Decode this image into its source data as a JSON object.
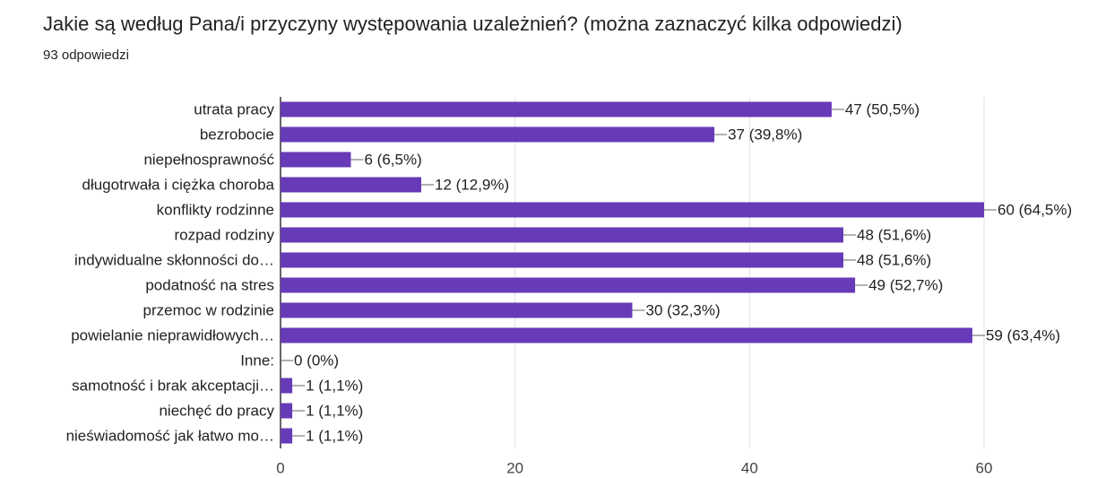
{
  "chart_data": {
    "type": "bar",
    "orientation": "horizontal",
    "title": "Jakie są według Pana/i przyczyny występowania uzależnień? (można zaznaczyć kilka odpowiedzi)",
    "subtitle": "93 odpowiedzi",
    "categories": [
      "utrata pracy",
      "bezrobocie",
      "niepełnosprawność",
      "długotrwała i ciężka choroba",
      "konflikty rodzinne",
      "rozpad rodziny",
      "indywidualne skłonności do…",
      "podatność na stres",
      "przemoc w rodzinie",
      "powielanie nieprawidłowych…",
      "Inne:",
      "samotność i brak akceptacji…",
      "niechęć do pracy",
      "nieświadomość jak łatwo mo…"
    ],
    "values": [
      47,
      37,
      6,
      12,
      60,
      48,
      48,
      49,
      30,
      59,
      0,
      1,
      1,
      1
    ],
    "value_labels": [
      "47 (50,5%)",
      "37 (39,8%)",
      "6 (6,5%)",
      "12 (12,9%)",
      "60 (64,5%)",
      "48 (51,6%)",
      "48 (51,6%)",
      "49 (52,7%)",
      "30 (32,3%)",
      "59 (63,4%)",
      "0 (0%)",
      "1 (1,1%)",
      "1 (1,1%)",
      "1 (1,1%)"
    ],
    "color": "#673ab7",
    "xlim": [
      0,
      60
    ],
    "xticks": [
      0,
      20,
      40,
      60
    ],
    "grid": true
  }
}
